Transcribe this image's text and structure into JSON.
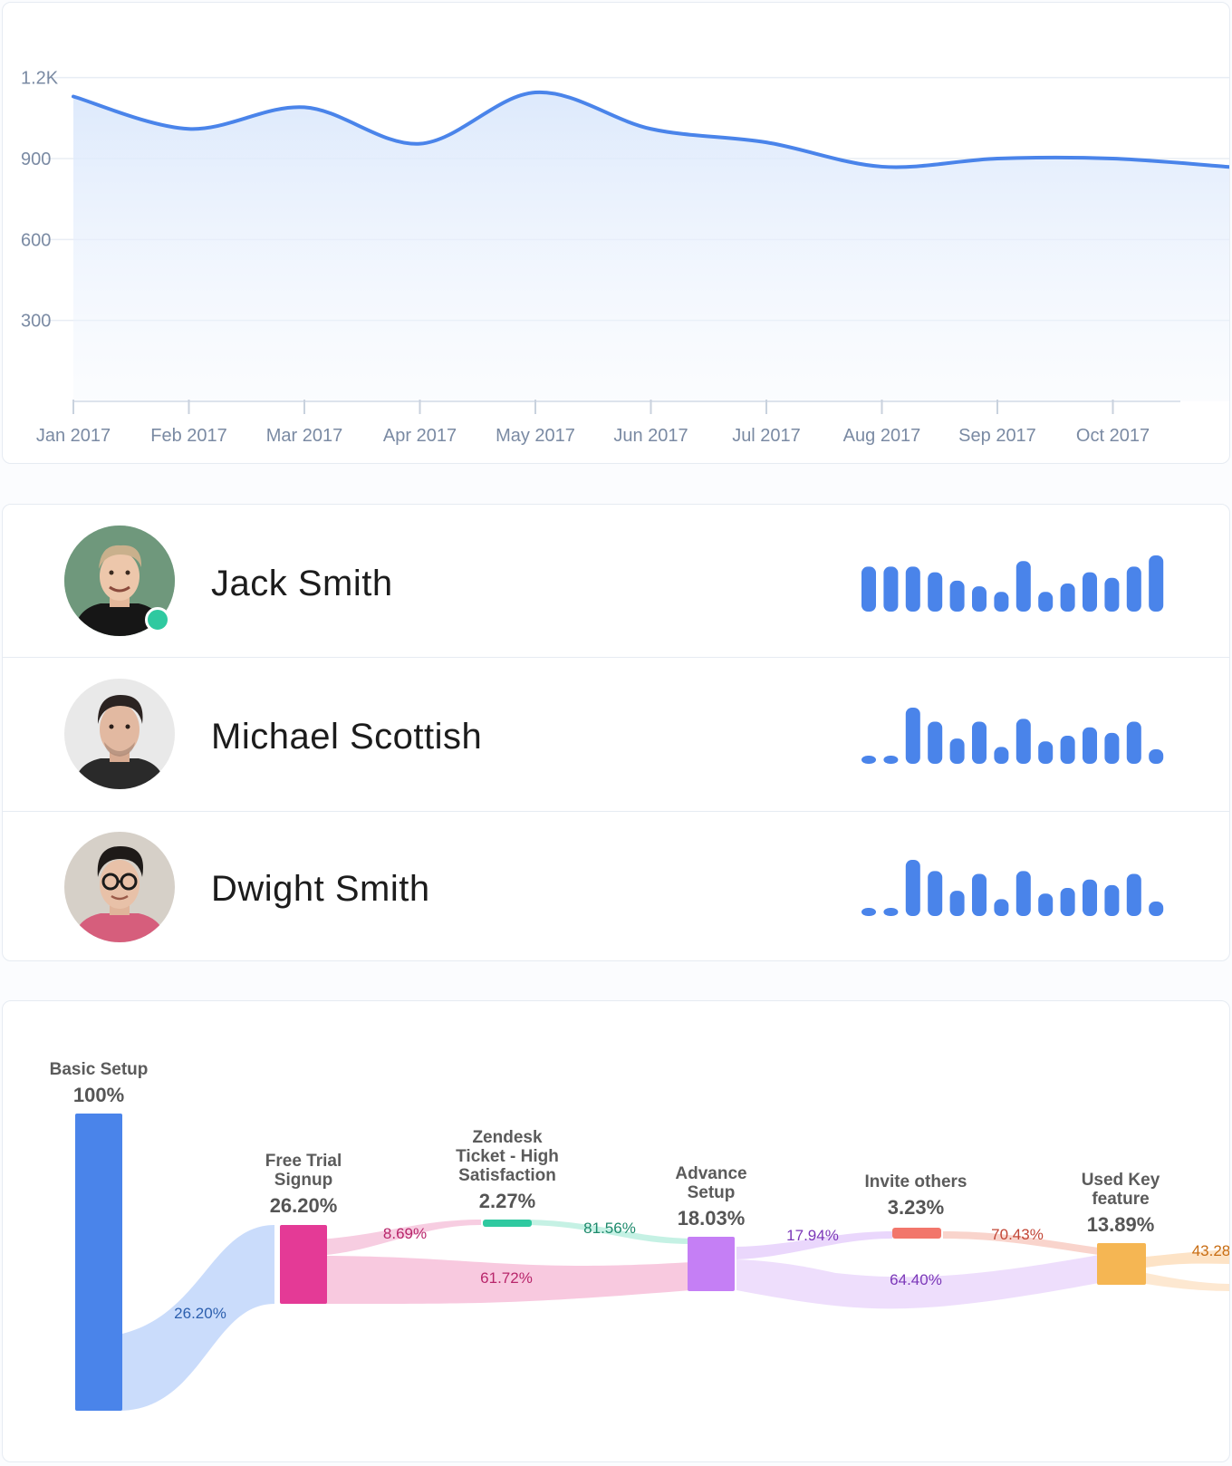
{
  "colors": {
    "accent": "#4a84ea",
    "grid": "#e8edf4",
    "axis_text": "#7a8aa3",
    "status_online": "#2fc9a0"
  },
  "chart_data": {
    "type": "area",
    "x": [
      "Jan 2017",
      "Feb 2017",
      "Mar 2017",
      "Apr 2017",
      "May 2017",
      "Jun 2017",
      "Jul 2017",
      "Aug 2017",
      "Sep 2017",
      "Oct 2017"
    ],
    "series": [
      {
        "values": [
          1130,
          1010,
          1090,
          955,
          1145,
          1010,
          960,
          870,
          900,
          900
        ]
      }
    ],
    "y_ticks": [
      "300",
      "600",
      "900",
      "1.2K"
    ],
    "ylim": [
      0,
      1350
    ],
    "grid": true,
    "color": "#4a84ea"
  },
  "people": [
    {
      "name": "Jack Smith",
      "online": true,
      "avatar_icon": "person-avatar-icon",
      "activity": [
        0.8,
        0.8,
        0.8,
        0.7,
        0.55,
        0.45,
        0.35,
        0.9,
        0.35,
        0.5,
        0.7,
        0.6,
        0.8,
        1.0
      ]
    },
    {
      "name": "Michael Scottish",
      "online": false,
      "avatar_icon": "person-avatar-icon",
      "activity": [
        0.12,
        0.12,
        1.0,
        0.75,
        0.45,
        0.75,
        0.3,
        0.8,
        0.4,
        0.5,
        0.65,
        0.55,
        0.75,
        0.25
      ]
    },
    {
      "name": "Dwight Smith",
      "online": false,
      "avatar_icon": "person-avatar-icon",
      "activity": [
        0.12,
        0.12,
        1.0,
        0.8,
        0.45,
        0.75,
        0.3,
        0.8,
        0.4,
        0.5,
        0.65,
        0.55,
        0.75,
        0.25
      ]
    }
  ],
  "funnel": {
    "nodes": [
      {
        "label_lines": [
          "Basic Setup"
        ],
        "value": "100%",
        "color": "#4a84ea"
      },
      {
        "label_lines": [
          "Free Trial",
          "Signup"
        ],
        "value": "26.20%",
        "color": "#e43a96"
      },
      {
        "label_lines": [
          "Zendesk",
          "Ticket - High",
          "Satisfaction"
        ],
        "value": "2.27%",
        "color": "#2fc9a0"
      },
      {
        "label_lines": [
          "Advance",
          "Setup"
        ],
        "value": "18.03%",
        "color": "#c57ff5"
      },
      {
        "label_lines": [
          "Invite others"
        ],
        "value": "3.23%",
        "color": "#f2766b"
      },
      {
        "label_lines": [
          "Used Key",
          "feature"
        ],
        "value": "13.89%",
        "color": "#f5b653"
      }
    ],
    "links": [
      {
        "label": "26.20%",
        "color": "#2c5fae"
      },
      {
        "label": "8.69%",
        "color": "#b8266b"
      },
      {
        "label": "61.72%",
        "color": "#b8266b"
      },
      {
        "label": "81.56%",
        "color": "#1d8a6c"
      },
      {
        "label": "17.94%",
        "color": "#7b37b8"
      },
      {
        "label": "64.40%",
        "color": "#7b37b8"
      },
      {
        "label": "70.43%",
        "color": "#c24535"
      },
      {
        "label": "43.28",
        "color": "#c86d13"
      }
    ]
  }
}
